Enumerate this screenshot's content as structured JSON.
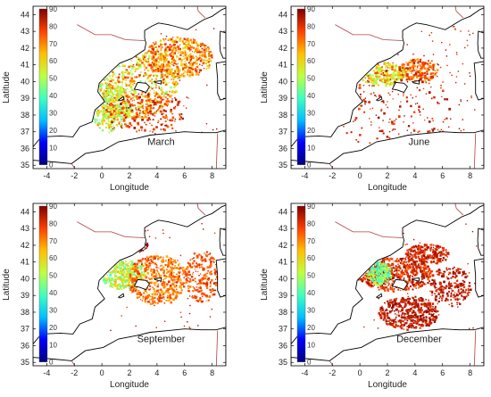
{
  "figure": {
    "panels": [
      {
        "key": "march",
        "label": "March"
      },
      {
        "key": "june",
        "label": "June"
      },
      {
        "key": "september",
        "label": "September"
      },
      {
        "key": "december",
        "label": "December"
      }
    ],
    "xlabel": "Longitude",
    "ylabel": "Latitude",
    "x_ticks": [
      "-4",
      "-2",
      "0",
      "2",
      "4",
      "6",
      "8"
    ],
    "y_ticks": [
      "44",
      "43",
      "42",
      "41",
      "40",
      "39",
      "38",
      "37",
      "36",
      "35"
    ],
    "colorbar_ticks": [
      "90",
      "80",
      "70",
      "60",
      "50",
      "40",
      "30",
      "20",
      "10",
      "0"
    ],
    "lon_range": [
      -5,
      9
    ],
    "lat_range": [
      34.8,
      44.5
    ],
    "colorbar_range": [
      0,
      90
    ],
    "colors": {
      "land_outline": "#000000",
      "border": "#b0413e",
      "colormap": [
        "#00007f",
        "#0000ff",
        "#00bfff",
        "#40ffbf",
        "#bfff40",
        "#ffbf00",
        "#ff3f00",
        "#7f0000"
      ]
    }
  }
}
